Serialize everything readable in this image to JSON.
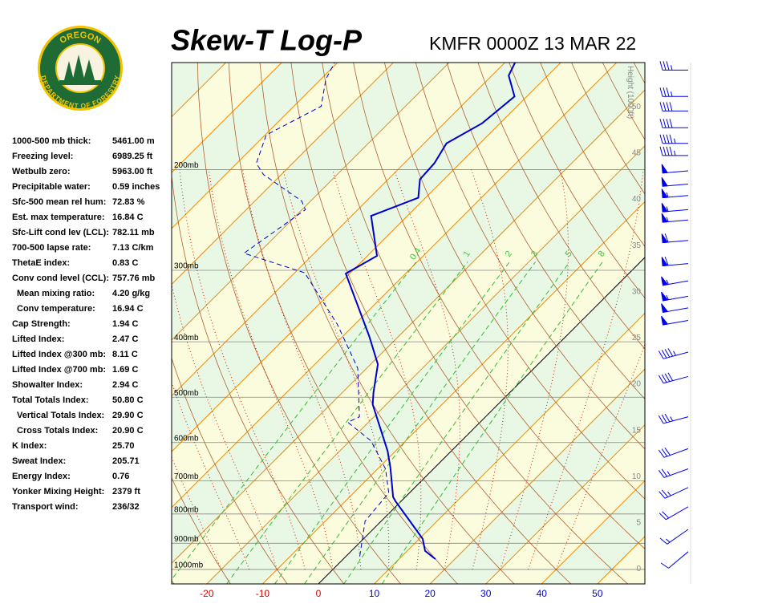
{
  "logo": {
    "top": "OREGON",
    "bottom": "DEPARTMENT OF FORESTRY"
  },
  "indices": [
    [
      "1000-500 mb thick:",
      "5461.00 m"
    ],
    [
      "Freezing level:",
      "6989.25 ft"
    ],
    [
      "Wetbulb zero:",
      "5963.00 ft"
    ],
    [
      "Precipitable water:",
      "0.59 inches"
    ],
    [
      "Sfc-500 mean rel hum:",
      "72.83 %"
    ],
    [
      "Est. max temperature:",
      "16.84 C"
    ],
    [
      "Sfc-Lift cond lev (LCL):",
      "782.11 mb"
    ],
    [
      "700-500 lapse rate:",
      "7.13 C/km"
    ],
    [
      "ThetaE index:",
      "0.83 C"
    ],
    [
      "Conv cond level (CCL):",
      "757.76 mb"
    ],
    [
      "Mean mixing ratio:",
      "4.20 g/kg"
    ],
    [
      "Conv temperature:",
      "16.94 C"
    ],
    [
      "Cap Strength:",
      "1.94 C"
    ],
    [
      "Lifted Index:",
      "2.47 C"
    ],
    [
      "Lifted Index @300 mb:",
      "8.11 C"
    ],
    [
      "Lifted Index @700 mb:",
      "1.69 C"
    ],
    [
      "Showalter Index:",
      "2.94 C"
    ],
    [
      "Total Totals Index:",
      "50.80 C"
    ],
    [
      "Vertical Totals Index:",
      "29.90 C"
    ],
    [
      "Cross Totals Index:",
      "20.90 C"
    ],
    [
      "K Index:",
      "25.70"
    ],
    [
      "Sweat Index:",
      "205.71"
    ],
    [
      "Energy Index:",
      "0.76"
    ],
    [
      "Yonker Mixing Height:",
      "2379 ft"
    ],
    [
      "Transport wind:",
      "236/32"
    ]
  ],
  "chart_data": {
    "type": "skewt",
    "title": "Skew-T Log-P",
    "subtitle": "KMFR 0000Z 13 MAR 22",
    "xlim": [
      -26.3,
      58.5
    ],
    "xticks": [
      -20,
      -10,
      0,
      10,
      20,
      30,
      40,
      50
    ],
    "ylim": [
      1060,
      130
    ],
    "log_y": true,
    "yticks": [
      {
        "value": 200,
        "label": "200mb"
      },
      {
        "value": 300,
        "label": "300mb"
      },
      {
        "value": 400,
        "label": "400mb"
      },
      {
        "value": 500,
        "label": "500mb"
      },
      {
        "value": 600,
        "label": "600mb"
      },
      {
        "value": 700,
        "label": "700mb"
      },
      {
        "value": 800,
        "label": "800mb"
      },
      {
        "value": 900,
        "label": "900mb"
      },
      {
        "value": 1000,
        "label": "1000mb"
      }
    ],
    "y2label": "Height (1000ft)",
    "y2lim": [
      -1.6,
      54.8
    ],
    "y2ticks": [
      0,
      5,
      10,
      15,
      20,
      25,
      30,
      35,
      40,
      45,
      50
    ],
    "mixing_ratios": [
      0.4,
      1,
      2,
      3,
      5,
      8
    ],
    "series": [
      {
        "color": "#0000cc",
        "style": "solid",
        "pressure": [
          959,
          928,
          884,
          760,
          747,
          663,
          621,
          515,
          491,
          438,
          391,
          304,
          283,
          241,
          224,
          208,
          195,
          180,
          166,
          149,
          137,
          130
        ],
        "values": [
          16.5,
          13.2,
          10.6,
          -1.0,
          -2.2,
          -8.0,
          -11.4,
          -22.4,
          -24.4,
          -28.7,
          -35.3,
          -50.7,
          -48.3,
          -56.5,
          -51.3,
          -54.3,
          -54.6,
          -56.0,
          -53.2,
          -52.2,
          -57.0,
          -58.2
        ]
      },
      {
        "color": "#0000cc",
        "style": "dashed",
        "pressure": [
          947,
          823,
          735,
          667,
          596,
          553,
          541,
          445,
          373,
          303,
          280,
          235,
          227,
          204,
          195,
          174,
          155,
          139,
          130
        ],
        "values": [
          2.4,
          -2.9,
          -3.7,
          -8.6,
          -16.2,
          -23.7,
          -22.6,
          -31.6,
          -43.1,
          -58.2,
          -72.6,
          -69.4,
          -71.6,
          -83.2,
          -86.5,
          -89.8,
          -85.1,
          -89.1,
          -90.5
        ]
      }
    ],
    "winds": {
      "color": "#0000ee",
      "pressure": [
        931,
        851,
        777,
        719,
        667,
        615,
        541,
        460,
        417,
        367,
        349,
        333,
        313,
        292,
        266,
        245,
        235,
        222,
        212,
        201,
        189,
        180,
        169,
        158,
        149,
        134
      ],
      "direction": [
        230,
        235,
        240,
        245,
        250,
        250,
        255,
        255,
        255,
        260,
        260,
        260,
        260,
        265,
        265,
        265,
        265,
        265,
        265,
        265,
        270,
        270,
        270,
        270,
        270,
        270
      ],
      "speed": [
        10,
        15,
        20,
        25,
        25,
        30,
        35,
        40,
        45,
        50,
        50,
        55,
        55,
        60,
        60,
        55,
        55,
        55,
        50,
        50,
        45,
        45,
        40,
        40,
        35,
        35
      ]
    }
  }
}
